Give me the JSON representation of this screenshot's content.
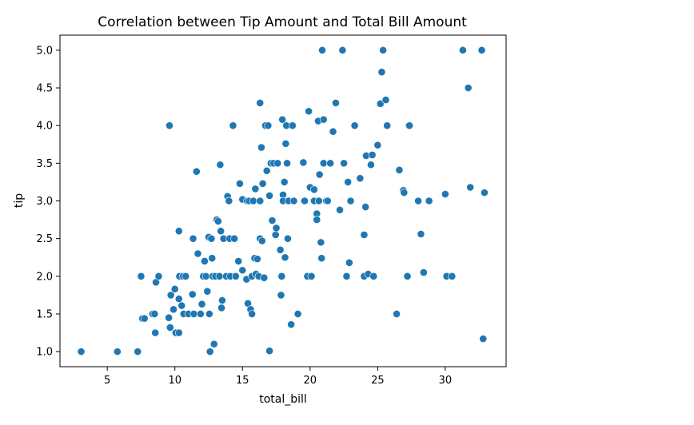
{
  "chart_data": {
    "type": "scatter",
    "title": "Correlation between Tip Amount and Total Bill Amount",
    "xlabel": "total_bill",
    "ylabel": "tip",
    "xlim": [
      1.5,
      34.5
    ],
    "ylim": [
      0.8,
      5.2
    ],
    "xticks": [
      5,
      10,
      15,
      20,
      25,
      30
    ],
    "yticks": [
      1.0,
      1.5,
      2.0,
      2.5,
      3.0,
      3.5,
      4.0,
      4.5,
      5.0
    ],
    "ytick_labels": [
      "1.0",
      "1.5",
      "2.0",
      "2.5",
      "3.0",
      "3.5",
      "4.0",
      "4.5",
      "5.0"
    ],
    "grid": false,
    "marker_color": "#1f77b4",
    "series": [
      {
        "points": [
          [
            3.07,
            1.0
          ],
          [
            5.75,
            1.0
          ],
          [
            7.25,
            1.0
          ],
          [
            7.5,
            2.0
          ],
          [
            7.6,
            1.44
          ],
          [
            7.75,
            1.44
          ],
          [
            8.35,
            1.5
          ],
          [
            8.5,
            1.5
          ],
          [
            8.55,
            1.25
          ],
          [
            8.6,
            1.92
          ],
          [
            8.8,
            2.0
          ],
          [
            9.6,
            4.0
          ],
          [
            9.55,
            1.45
          ],
          [
            9.65,
            1.32
          ],
          [
            9.7,
            1.75
          ],
          [
            9.9,
            1.56
          ],
          [
            10.07,
            1.25
          ],
          [
            10.0,
            1.83
          ],
          [
            10.3,
            2.6
          ],
          [
            10.3,
            1.7
          ],
          [
            10.34,
            2.0
          ],
          [
            10.5,
            1.61
          ],
          [
            10.3,
            1.25
          ],
          [
            10.6,
            2.0
          ],
          [
            10.65,
            1.5
          ],
          [
            10.8,
            2.0
          ],
          [
            11.0,
            1.5
          ],
          [
            11.3,
            1.76
          ],
          [
            11.35,
            2.5
          ],
          [
            11.4,
            1.5
          ],
          [
            11.6,
            3.39
          ],
          [
            11.7,
            2.3
          ],
          [
            11.9,
            1.5
          ],
          [
            12.0,
            1.63
          ],
          [
            12.1,
            2.0
          ],
          [
            12.2,
            2.2
          ],
          [
            12.3,
            2.0
          ],
          [
            12.4,
            1.8
          ],
          [
            12.5,
            2.52
          ],
          [
            12.55,
            1.5
          ],
          [
            12.6,
            1.0
          ],
          [
            12.7,
            2.5
          ],
          [
            12.75,
            2.24
          ],
          [
            12.8,
            2.0
          ],
          [
            12.9,
            1.1
          ],
          [
            13.0,
            2.0
          ],
          [
            13.1,
            2.75
          ],
          [
            13.2,
            2.73
          ],
          [
            13.3,
            2.0
          ],
          [
            13.35,
            3.48
          ],
          [
            13.4,
            2.6
          ],
          [
            13.45,
            1.58
          ],
          [
            13.5,
            1.68
          ],
          [
            13.6,
            2.5
          ],
          [
            13.8,
            2.0
          ],
          [
            13.9,
            3.06
          ],
          [
            14.0,
            3.0
          ],
          [
            14.05,
            2.5
          ],
          [
            14.1,
            2.0
          ],
          [
            14.3,
            4.0
          ],
          [
            14.4,
            2.5
          ],
          [
            14.5,
            2.0
          ],
          [
            14.7,
            2.2
          ],
          [
            14.8,
            3.23
          ],
          [
            15.0,
            3.02
          ],
          [
            15.0,
            2.08
          ],
          [
            15.3,
            1.96
          ],
          [
            15.35,
            3.0
          ],
          [
            15.4,
            1.64
          ],
          [
            15.5,
            3.0
          ],
          [
            15.6,
            1.56
          ],
          [
            15.7,
            2.0
          ],
          [
            15.8,
            3.0
          ],
          [
            15.9,
            2.24
          ],
          [
            15.95,
            3.16
          ],
          [
            15.7,
            1.5
          ],
          [
            16.1,
            2.23
          ],
          [
            16.3,
            4.3
          ],
          [
            16.4,
            3.71
          ],
          [
            16.0,
            2.03
          ],
          [
            16.3,
            3.0
          ],
          [
            16.2,
            2.0
          ],
          [
            16.3,
            2.5
          ],
          [
            16.45,
            2.47
          ],
          [
            16.5,
            3.23
          ],
          [
            16.6,
            1.98
          ],
          [
            16.7,
            4.0
          ],
          [
            16.8,
            3.4
          ],
          [
            16.9,
            4.0
          ],
          [
            17.0,
            1.01
          ],
          [
            17.1,
            3.5
          ],
          [
            17.0,
            3.07
          ],
          [
            17.2,
            2.74
          ],
          [
            17.3,
            3.5
          ],
          [
            17.45,
            2.55
          ],
          [
            17.5,
            2.64
          ],
          [
            17.6,
            3.5
          ],
          [
            17.8,
            2.35
          ],
          [
            17.85,
            1.75
          ],
          [
            17.9,
            2.0
          ],
          [
            17.95,
            4.08
          ],
          [
            18.0,
            3.08
          ],
          [
            18.1,
            3.25
          ],
          [
            18.15,
            2.25
          ],
          [
            18.2,
            3.76
          ],
          [
            18.3,
            3.5
          ],
          [
            18.25,
            4.0
          ],
          [
            18.35,
            2.5
          ],
          [
            18.0,
            3.0
          ],
          [
            18.4,
            3.0
          ],
          [
            18.6,
            1.36
          ],
          [
            18.7,
            4.0
          ],
          [
            18.8,
            3.0
          ],
          [
            19.1,
            1.5
          ],
          [
            19.5,
            3.51
          ],
          [
            19.55,
            3.0
          ],
          [
            19.6,
            3.0
          ],
          [
            19.8,
            2.0
          ],
          [
            19.9,
            4.19
          ],
          [
            20.0,
            3.18
          ],
          [
            20.3,
            3.15
          ],
          [
            20.1,
            2.0
          ],
          [
            20.3,
            3.0
          ],
          [
            20.5,
            2.83
          ],
          [
            20.5,
            2.75
          ],
          [
            20.6,
            4.06
          ],
          [
            20.65,
            3.0
          ],
          [
            20.7,
            3.35
          ],
          [
            20.8,
            2.45
          ],
          [
            20.85,
            2.24
          ],
          [
            20.9,
            5.0
          ],
          [
            21.0,
            3.5
          ],
          [
            21.0,
            4.08
          ],
          [
            21.2,
            3.0
          ],
          [
            21.3,
            3.0
          ],
          [
            21.5,
            3.5
          ],
          [
            21.7,
            3.92
          ],
          [
            21.9,
            4.3
          ],
          [
            22.2,
            2.88
          ],
          [
            22.4,
            5.0
          ],
          [
            22.5,
            3.5
          ],
          [
            22.7,
            2.0
          ],
          [
            22.8,
            3.25
          ],
          [
            22.9,
            2.18
          ],
          [
            23.0,
            3.0
          ],
          [
            23.3,
            4.0
          ],
          [
            23.7,
            3.3
          ],
          [
            24.0,
            2.55
          ],
          [
            24.1,
            2.92
          ],
          [
            24.15,
            3.6
          ],
          [
            24.0,
            2.0
          ],
          [
            24.3,
            2.03
          ],
          [
            24.5,
            3.48
          ],
          [
            24.6,
            3.61
          ],
          [
            24.7,
            2.0
          ],
          [
            25.0,
            3.74
          ],
          [
            25.2,
            4.29
          ],
          [
            25.3,
            4.71
          ],
          [
            25.4,
            5.0
          ],
          [
            25.6,
            4.34
          ],
          [
            25.7,
            4.0
          ],
          [
            26.4,
            1.5
          ],
          [
            26.6,
            3.41
          ],
          [
            26.9,
            3.14
          ],
          [
            26.95,
            3.11
          ],
          [
            27.2,
            2.0
          ],
          [
            27.3,
            4.0
          ],
          [
            27.35,
            4.0
          ],
          [
            28.0,
            3.0
          ],
          [
            28.2,
            2.56
          ],
          [
            28.4,
            2.05
          ],
          [
            28.8,
            3.0
          ],
          [
            30.0,
            3.09
          ],
          [
            30.1,
            2.0
          ],
          [
            30.5,
            2.0
          ],
          [
            31.3,
            5.0
          ],
          [
            31.7,
            4.5
          ],
          [
            31.85,
            3.18
          ],
          [
            32.7,
            5.0
          ],
          [
            32.8,
            1.17
          ],
          [
            32.9,
            3.11
          ]
        ]
      }
    ]
  }
}
